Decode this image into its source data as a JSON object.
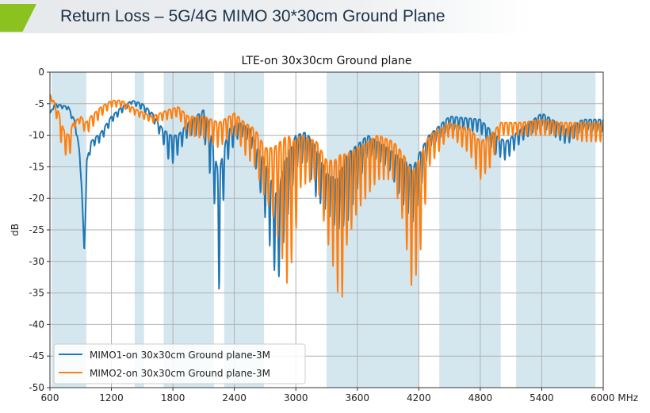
{
  "slide": {
    "title": "Return Loss – 5G/4G MIMO 30*30cm Ground Plane",
    "accent_color": "#8cc21f"
  },
  "chart_data": {
    "type": "line",
    "title": "LTE-on 30x30cm Ground plane",
    "xlabel": "MHz",
    "ylabel": "dB",
    "xlim": [
      600,
      6000
    ],
    "ylim": [
      -50,
      0
    ],
    "xticks": [
      600,
      1200,
      1800,
      2400,
      3000,
      3600,
      4200,
      4800,
      5400,
      6000
    ],
    "xtick_labels": [
      "600",
      "1200",
      "1800",
      "2400",
      "3000",
      "3600",
      "4200",
      "4800",
      "5400",
      "6000 MHz"
    ],
    "yticks": [
      0,
      -5,
      -10,
      -15,
      -20,
      -25,
      -30,
      -35,
      -40,
      -45,
      -50
    ],
    "ytick_labels": [
      "0",
      "-5",
      "-10",
      "-15",
      "-20",
      "-25",
      "-30",
      "-35",
      "-40",
      "-45",
      "-50"
    ],
    "grid": true,
    "legend_position": "lower-left",
    "shaded_bands_mhz": [
      [
        617,
        955
      ],
      [
        1427,
        1518
      ],
      [
        1710,
        2200
      ],
      [
        2300,
        2690
      ],
      [
        3300,
        4200
      ],
      [
        4400,
        5000
      ],
      [
        5150,
        5925
      ]
    ],
    "band_color": "#d4e7ef",
    "ripple_period_mhz": 45,
    "series": [
      {
        "name": "MIMO1-on 30x30cm Ground plane-3M",
        "color": "#1f77b4",
        "envelope_mhz_upper_lower_db": [
          [
            600,
            -6.5,
            -6.5
          ],
          [
            650,
            -5,
            -5.5
          ],
          [
            780,
            -5.5,
            -6
          ],
          [
            850,
            -8,
            -9
          ],
          [
            900,
            -14,
            -16
          ],
          [
            935,
            -28.5,
            -28.5
          ],
          [
            960,
            -14,
            -16
          ],
          [
            1000,
            -11,
            -12
          ],
          [
            1100,
            -9.5,
            -11
          ],
          [
            1200,
            -7,
            -8
          ],
          [
            1300,
            -5.5,
            -6.5
          ],
          [
            1400,
            -4.5,
            -5
          ],
          [
            1500,
            -5,
            -6
          ],
          [
            1600,
            -6.5,
            -7.5
          ],
          [
            1700,
            -9,
            -11
          ],
          [
            1780,
            -10,
            -15
          ],
          [
            1850,
            -10,
            -13
          ],
          [
            1950,
            -8,
            -10
          ],
          [
            2100,
            -6,
            -10
          ],
          [
            2150,
            -8,
            -15
          ],
          [
            2200,
            -12,
            -20
          ],
          [
            2230,
            -15,
            -25
          ],
          [
            2260,
            -15,
            -39
          ],
          [
            2300,
            -12,
            -17
          ],
          [
            2350,
            -9,
            -13
          ],
          [
            2450,
            -8,
            -10
          ],
          [
            2550,
            -9,
            -11
          ],
          [
            2620,
            -12,
            -16
          ],
          [
            2700,
            -14,
            -23
          ],
          [
            2780,
            -18,
            -31
          ],
          [
            2830,
            -20,
            -33
          ],
          [
            2870,
            -15,
            -28
          ],
          [
            3000,
            -10,
            -15
          ],
          [
            3100,
            -9.5,
            -14
          ],
          [
            3200,
            -12,
            -20
          ],
          [
            3300,
            -16,
            -22
          ],
          [
            3400,
            -17,
            -25
          ],
          [
            3500,
            -13,
            -24
          ],
          [
            3700,
            -10,
            -13
          ],
          [
            3900,
            -12,
            -15
          ],
          [
            4050,
            -14,
            -21
          ],
          [
            4150,
            -15,
            -24
          ],
          [
            4200,
            -13,
            -20
          ],
          [
            4300,
            -10,
            -12
          ],
          [
            4500,
            -7,
            -9
          ],
          [
            4800,
            -7.5,
            -9.5
          ],
          [
            4950,
            -10,
            -13
          ],
          [
            5050,
            -11,
            -14
          ],
          [
            5200,
            -9,
            -11
          ],
          [
            5400,
            -6.5,
            -8.5
          ],
          [
            5550,
            -8,
            -10.5
          ],
          [
            5650,
            -9,
            -11.5
          ],
          [
            5800,
            -7.5,
            -9
          ],
          [
            6000,
            -7.5,
            -9.5
          ]
        ]
      },
      {
        "name": "MIMO2-on 30x30cm Ground plane-3M",
        "color": "#ff7f0e",
        "envelope_mhz_upper_lower_db": [
          [
            600,
            -3.5,
            -4
          ],
          [
            650,
            -5,
            -6
          ],
          [
            700,
            -7,
            -11
          ],
          [
            730,
            -9,
            -11.5
          ],
          [
            780,
            -10,
            -15
          ],
          [
            830,
            -8,
            -9
          ],
          [
            900,
            -7,
            -8
          ],
          [
            950,
            -8,
            -10
          ],
          [
            1000,
            -7,
            -9
          ],
          [
            1100,
            -5.5,
            -7
          ],
          [
            1200,
            -4.5,
            -5.5
          ],
          [
            1300,
            -4.5,
            -5.5
          ],
          [
            1450,
            -6,
            -7
          ],
          [
            1600,
            -7,
            -8
          ],
          [
            1750,
            -6,
            -7.5
          ],
          [
            1850,
            -5.5,
            -7
          ],
          [
            1950,
            -7,
            -10
          ],
          [
            2100,
            -7,
            -10.5
          ],
          [
            2250,
            -8,
            -12
          ],
          [
            2400,
            -6.5,
            -9.5
          ],
          [
            2500,
            -8,
            -13
          ],
          [
            2600,
            -9,
            -15
          ],
          [
            2700,
            -12,
            -20
          ],
          [
            2780,
            -12,
            -23
          ],
          [
            2850,
            -11,
            -28
          ],
          [
            2920,
            -10,
            -34
          ],
          [
            2980,
            -11,
            -28
          ],
          [
            3050,
            -10,
            -18
          ],
          [
            3200,
            -11,
            -17
          ],
          [
            3300,
            -14,
            -26
          ],
          [
            3380,
            -14,
            -32
          ],
          [
            3440,
            -13,
            -38
          ],
          [
            3500,
            -13,
            -27
          ],
          [
            3600,
            -12,
            -22
          ],
          [
            3800,
            -10,
            -17
          ],
          [
            3950,
            -11,
            -17
          ],
          [
            4050,
            -13,
            -24
          ],
          [
            4130,
            -16,
            -34
          ],
          [
            4200,
            -14,
            -31
          ],
          [
            4300,
            -10,
            -15
          ],
          [
            4500,
            -8,
            -10
          ],
          [
            4700,
            -9,
            -13
          ],
          [
            4800,
            -11,
            -17
          ],
          [
            4900,
            -10,
            -15
          ],
          [
            5000,
            -8,
            -10
          ],
          [
            5200,
            -8,
            -10
          ],
          [
            5400,
            -7.5,
            -10
          ],
          [
            5600,
            -8,
            -10
          ],
          [
            5800,
            -8,
            -11
          ],
          [
            6000,
            -8,
            -11
          ]
        ]
      }
    ]
  }
}
